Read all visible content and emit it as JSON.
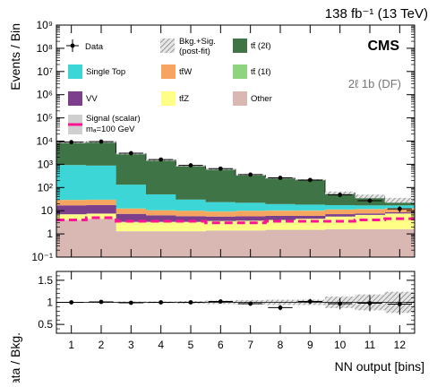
{
  "header": {
    "lumi": "138 fb⁻¹ (13 TeV)",
    "experiment": "CMS",
    "region": "2ℓ 1b (DF)"
  },
  "chart_data": {
    "type": "bar",
    "stacked": true,
    "log_y": true,
    "x": [
      1,
      2,
      3,
      4,
      5,
      6,
      7,
      8,
      9,
      10,
      11,
      12
    ],
    "xlabel": "NN output [bins]",
    "ylabel": "Events / Bin",
    "ylim": [
      0.1,
      1000000000
    ],
    "y_tick_labels": [
      "10⁻¹",
      "1",
      "10",
      "10²",
      "10³",
      "10⁴",
      "10⁵",
      "10⁶",
      "10⁷",
      "10⁸",
      "10⁹"
    ],
    "series": [
      {
        "name": "Other",
        "color": "#d9b7b2",
        "values": [
          4,
          4.5,
          1.3,
          1.3,
          1.3,
          1.4,
          1.4,
          1.5,
          1.5,
          1.6,
          1.6,
          1.6
        ]
      },
      {
        "name": "tt̄Z",
        "color": "#ffff88",
        "values": [
          3,
          3,
          2,
          2,
          2,
          2.2,
          2.3,
          2.5,
          3,
          4,
          5,
          6
        ]
      },
      {
        "name": "VV",
        "color": "#7b3f8c",
        "values": [
          10,
          10,
          4,
          3,
          2.5,
          2,
          2,
          2,
          1.5,
          1.5,
          1,
          1
        ]
      },
      {
        "name": "tt̄W",
        "color": "#f6a561",
        "values": [
          12,
          12,
          5,
          4,
          4,
          3.5,
          4,
          4,
          4,
          4,
          4,
          4
        ]
      },
      {
        "name": "tt̄ (1ℓ)",
        "color": "#8ed47e",
        "values": [
          0.5,
          0.5,
          0.3,
          0.3,
          0.3,
          0.3,
          0.3,
          0.3,
          0.3,
          0.3,
          0.3,
          0.3
        ]
      },
      {
        "name": "Single Top",
        "color": "#3dd6d6",
        "values": [
          900,
          850,
          120,
          40,
          20,
          14,
          12,
          9,
          8,
          6,
          5,
          4
        ]
      },
      {
        "name": "tt̄ (2ℓ)",
        "color": "#3f7447",
        "values": [
          8000,
          8500,
          2800,
          1500,
          850,
          600,
          330,
          240,
          200,
          42,
          25,
          12
        ]
      }
    ],
    "data": {
      "name": "Data",
      "values": [
        9000,
        9500,
        3000,
        1600,
        900,
        650,
        360,
        260,
        210,
        48,
        27,
        12
      ]
    },
    "signal": {
      "name": "Signal (scalar)",
      "label2": "mₐ=100 GeV",
      "color": "#ff1493",
      "values": [
        4,
        5,
        3.5,
        3.5,
        3.5,
        3,
        3,
        3.5,
        3.5,
        3.5,
        4,
        4.5
      ]
    },
    "uncertainty_label": "Bkg.+Sig. (post-fit)",
    "ratio": {
      "ylabel": "Data / Bkg.",
      "ylim": [
        0.3,
        1.7
      ],
      "y_tick_labels": [
        "0.5",
        "1",
        "1.5"
      ],
      "values": [
        1.0,
        1.01,
        0.99,
        1.0,
        1.0,
        1.02,
        0.97,
        0.88,
        1.02,
        0.97,
        0.98,
        0.96
      ],
      "errors": [
        0.01,
        0.01,
        0.02,
        0.02,
        0.03,
        0.04,
        0.05,
        0.06,
        0.06,
        0.13,
        0.18,
        0.24
      ]
    }
  }
}
